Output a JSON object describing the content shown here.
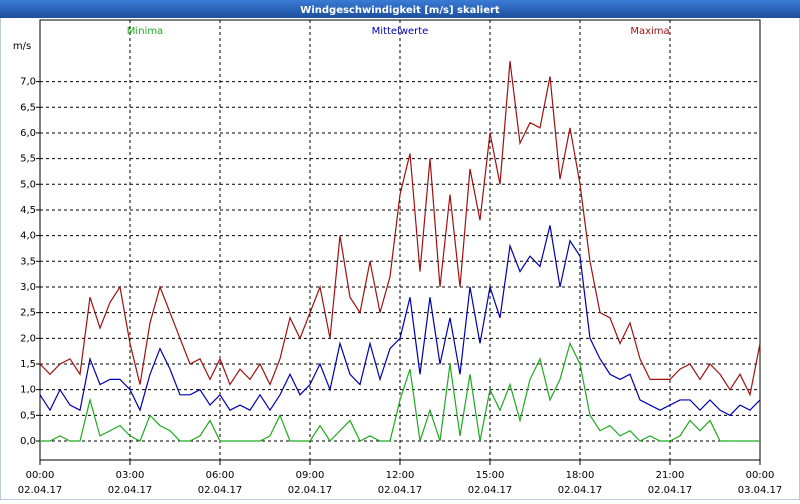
{
  "chart_data": {
    "type": "line",
    "title": "Windgeschwindigkeit [m/s] skaliert",
    "y_label": "m/s",
    "x": [
      0,
      20,
      40,
      60,
      80,
      100,
      120,
      140,
      160,
      180,
      200,
      220,
      240,
      260,
      280,
      300,
      320,
      340,
      360,
      380,
      400,
      420,
      440,
      460,
      480,
      500,
      520,
      540,
      560,
      580,
      600,
      620,
      640,
      660,
      680,
      700,
      720,
      740,
      760,
      780,
      800,
      820,
      840,
      860,
      880,
      900,
      920,
      940,
      960,
      980,
      1000,
      1020,
      1040,
      1060,
      1080,
      1100,
      1120,
      1140,
      1160,
      1180,
      1200,
      1220,
      1240,
      1260,
      1280,
      1300,
      1320,
      1340,
      1360,
      1380,
      1400,
      1420,
      1440
    ],
    "series": [
      {
        "name": "Minima",
        "color": "#1faa1f",
        "values": [
          0,
          0,
          0.1,
          0,
          0,
          0.8,
          0.1,
          0.2,
          0.3,
          0.1,
          0,
          0.5,
          0.3,
          0.2,
          0,
          0,
          0.1,
          0.4,
          0,
          0,
          0,
          0,
          0,
          0.1,
          0.5,
          0,
          0,
          0,
          0.3,
          0,
          0.2,
          0.4,
          0,
          0.1,
          0,
          0,
          0.8,
          1.4,
          0,
          0.6,
          0,
          1.5,
          0.1,
          1.3,
          0,
          1.0,
          0.6,
          1.1,
          0.4,
          1.2,
          1.6,
          0.8,
          1.2,
          1.9,
          1.5,
          0.5,
          0.2,
          0.3,
          0.1,
          0.2,
          0,
          0.1,
          0,
          0,
          0.1,
          0.4,
          0.2,
          0.4,
          0,
          0,
          0,
          0,
          0
        ]
      },
      {
        "name": "Mittelwerte",
        "color": "#0000b0",
        "values": [
          0.9,
          0.6,
          1.0,
          0.7,
          0.6,
          1.6,
          1.1,
          1.2,
          1.2,
          1.0,
          0.6,
          1.3,
          1.8,
          1.4,
          0.9,
          0.9,
          1.0,
          0.7,
          0.9,
          0.6,
          0.7,
          0.6,
          0.9,
          0.6,
          0.9,
          1.3,
          0.9,
          1.1,
          1.5,
          1.0,
          1.9,
          1.3,
          1.1,
          1.9,
          1.2,
          1.8,
          2.0,
          2.8,
          1.3,
          2.8,
          1.5,
          2.4,
          1.3,
          3.0,
          1.9,
          3.0,
          2.4,
          3.8,
          3.3,
          3.6,
          3.4,
          4.2,
          3.0,
          3.9,
          3.6,
          2.0,
          1.6,
          1.3,
          1.2,
          1.3,
          0.8,
          0.7,
          0.6,
          0.7,
          0.8,
          0.8,
          0.6,
          0.8,
          0.6,
          0.5,
          0.7,
          0.6,
          0.8
        ]
      },
      {
        "name": "Maxima",
        "color": "#a01010",
        "values": [
          1.5,
          1.3,
          1.5,
          1.6,
          1.3,
          2.8,
          2.2,
          2.7,
          3.0,
          1.9,
          1.1,
          2.3,
          3.0,
          2.5,
          2.0,
          1.5,
          1.6,
          1.2,
          1.6,
          1.1,
          1.4,
          1.2,
          1.5,
          1.1,
          1.6,
          2.4,
          2.0,
          2.5,
          3.0,
          2.0,
          4.0,
          2.8,
          2.5,
          3.5,
          2.5,
          3.2,
          4.8,
          5.6,
          3.3,
          5.5,
          3.0,
          4.8,
          3.0,
          5.3,
          4.3,
          6.0,
          5.0,
          7.4,
          5.8,
          6.2,
          6.1,
          7.1,
          5.1,
          6.1,
          5.0,
          3.5,
          2.5,
          2.4,
          1.9,
          2.3,
          1.6,
          1.2,
          1.2,
          1.2,
          1.4,
          1.5,
          1.2,
          1.5,
          1.3,
          1.0,
          1.3,
          0.9,
          1.9
        ]
      }
    ],
    "xlim": [
      0,
      1440
    ],
    "xticks": [
      {
        "value": 0,
        "label": "00:00 02.04.17"
      },
      {
        "value": 180,
        "label": "03:00 02.04.17"
      },
      {
        "value": 360,
        "label": "06:00 02.04.17"
      },
      {
        "value": 540,
        "label": "09:00 02.04.17"
      },
      {
        "value": 720,
        "label": "12:00 02.04.17"
      },
      {
        "value": 900,
        "label": "15:00 02.04.17"
      },
      {
        "value": 1080,
        "label": "18:00 02.04.17"
      },
      {
        "value": 1260,
        "label": "21:00 02.04.17"
      },
      {
        "value": 1440,
        "label": "00:00 03.04.17"
      }
    ],
    "ylim": [
      -0.37,
      8.2
    ],
    "yticks": [
      {
        "value": 0,
        "label": "0,0"
      },
      {
        "value": 0.5,
        "label": "0,5"
      },
      {
        "value": 1,
        "label": "1,0"
      },
      {
        "value": 1.5,
        "label": "1,5"
      },
      {
        "value": 2,
        "label": "2,0"
      },
      {
        "value": 2.5,
        "label": "2,5"
      },
      {
        "value": 3,
        "label": "3,0"
      },
      {
        "value": 3.5,
        "label": "3,5"
      },
      {
        "value": 4,
        "label": "4,0"
      },
      {
        "value": 4.5,
        "label": "4,5"
      },
      {
        "value": 5,
        "label": "5,0"
      },
      {
        "value": 5.5,
        "label": "5,5"
      },
      {
        "value": 6,
        "label": "6,0"
      },
      {
        "value": 6.5,
        "label": "6,5"
      },
      {
        "value": 7,
        "label": "7,0"
      }
    ],
    "grid": true
  }
}
